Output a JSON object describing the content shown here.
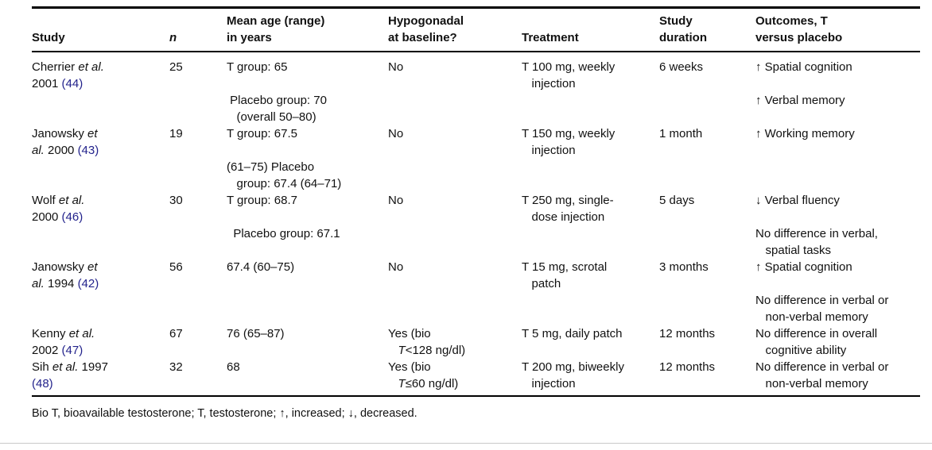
{
  "table": {
    "headers": {
      "study": "Study",
      "n": "n",
      "age": "Mean age (range)\nin years",
      "hypogonadal": "Hypogonadal\nat baseline?",
      "treatment": "Treatment",
      "duration": "Study\nduration",
      "outcomes": "Outcomes, T\nversus placebo"
    },
    "rows": [
      {
        "study": {
          "name": "Cherrier ",
          "etal": "et al.",
          "mid": "\n2001 ",
          "cite": "(44)"
        },
        "n": "25",
        "age": "T group: 65\n\n Placebo group: 70\n   (overall 50–80)",
        "hypo": {
          "pre": "No",
          "t": "",
          "post": ""
        },
        "treatment": "T 100 mg, weekly\n   injection",
        "duration": "6 weeks",
        "outcomes": "↑ Spatial cognition\n\n↑ Verbal memory"
      },
      {
        "study": {
          "name": "Janowsky ",
          "etal": "et\nal.",
          "mid": " 2000 ",
          "cite": "(43)"
        },
        "n": "19",
        "age": "T group: 67.5\n\n(61–75) Placebo\n   group: 67.4 (64–71)",
        "hypo": {
          "pre": "No",
          "t": "",
          "post": ""
        },
        "treatment": "T 150 mg, weekly\n   injection",
        "duration": "1 month",
        "outcomes": "↑ Working memory"
      },
      {
        "study": {
          "name": "Wolf ",
          "etal": "et al.",
          "mid": "\n2000 ",
          "cite": "(46)"
        },
        "n": "30",
        "age": "T group: 68.7\n\n  Placebo group: 67.1",
        "hypo": {
          "pre": "No",
          "t": "",
          "post": ""
        },
        "treatment": "T 250 mg, single-\n   dose injection",
        "duration": "5 days",
        "outcomes": "↓ Verbal fluency\n\nNo difference in verbal,\n   spatial tasks"
      },
      {
        "study": {
          "name": "Janowsky ",
          "etal": "et\nal.",
          "mid": " 1994 ",
          "cite": "(42)"
        },
        "n": "56",
        "age": "67.4 (60–75)",
        "hypo": {
          "pre": "No",
          "t": "",
          "post": ""
        },
        "treatment": "T 15 mg, scrotal\n   patch",
        "duration": "3 months",
        "outcomes": "↑ Spatial cognition\n\nNo difference in verbal or\n   non-verbal memory"
      },
      {
        "study": {
          "name": "Kenny ",
          "etal": "et al.",
          "mid": "\n2002 ",
          "cite": "(47)"
        },
        "n": "67",
        "age": "76 (65–87)",
        "hypo": {
          "pre": "Yes (bio\n   ",
          "t": "T",
          "post": "<128 ng/dl)"
        },
        "treatment": "T 5 mg, daily patch",
        "duration": "12 months",
        "outcomes": "No difference in overall\n   cognitive ability"
      },
      {
        "study": {
          "name": "Sih ",
          "etal": "et al.",
          "mid": " 1997\n",
          "cite": "(48)"
        },
        "n": "32",
        "age": "68",
        "hypo": {
          "pre": "Yes (bio\n   ",
          "t": "T",
          "post": "≤60 ng/dl)"
        },
        "treatment": "T 200 mg, biweekly\n   injection",
        "duration": "12 months",
        "outcomes": "No difference in verbal or\n   non-verbal memory"
      }
    ],
    "footnote": "Bio T, bioavailable testosterone; T, testosterone; ↑, increased; ↓, decreased.",
    "citation_color": "#23238c"
  }
}
